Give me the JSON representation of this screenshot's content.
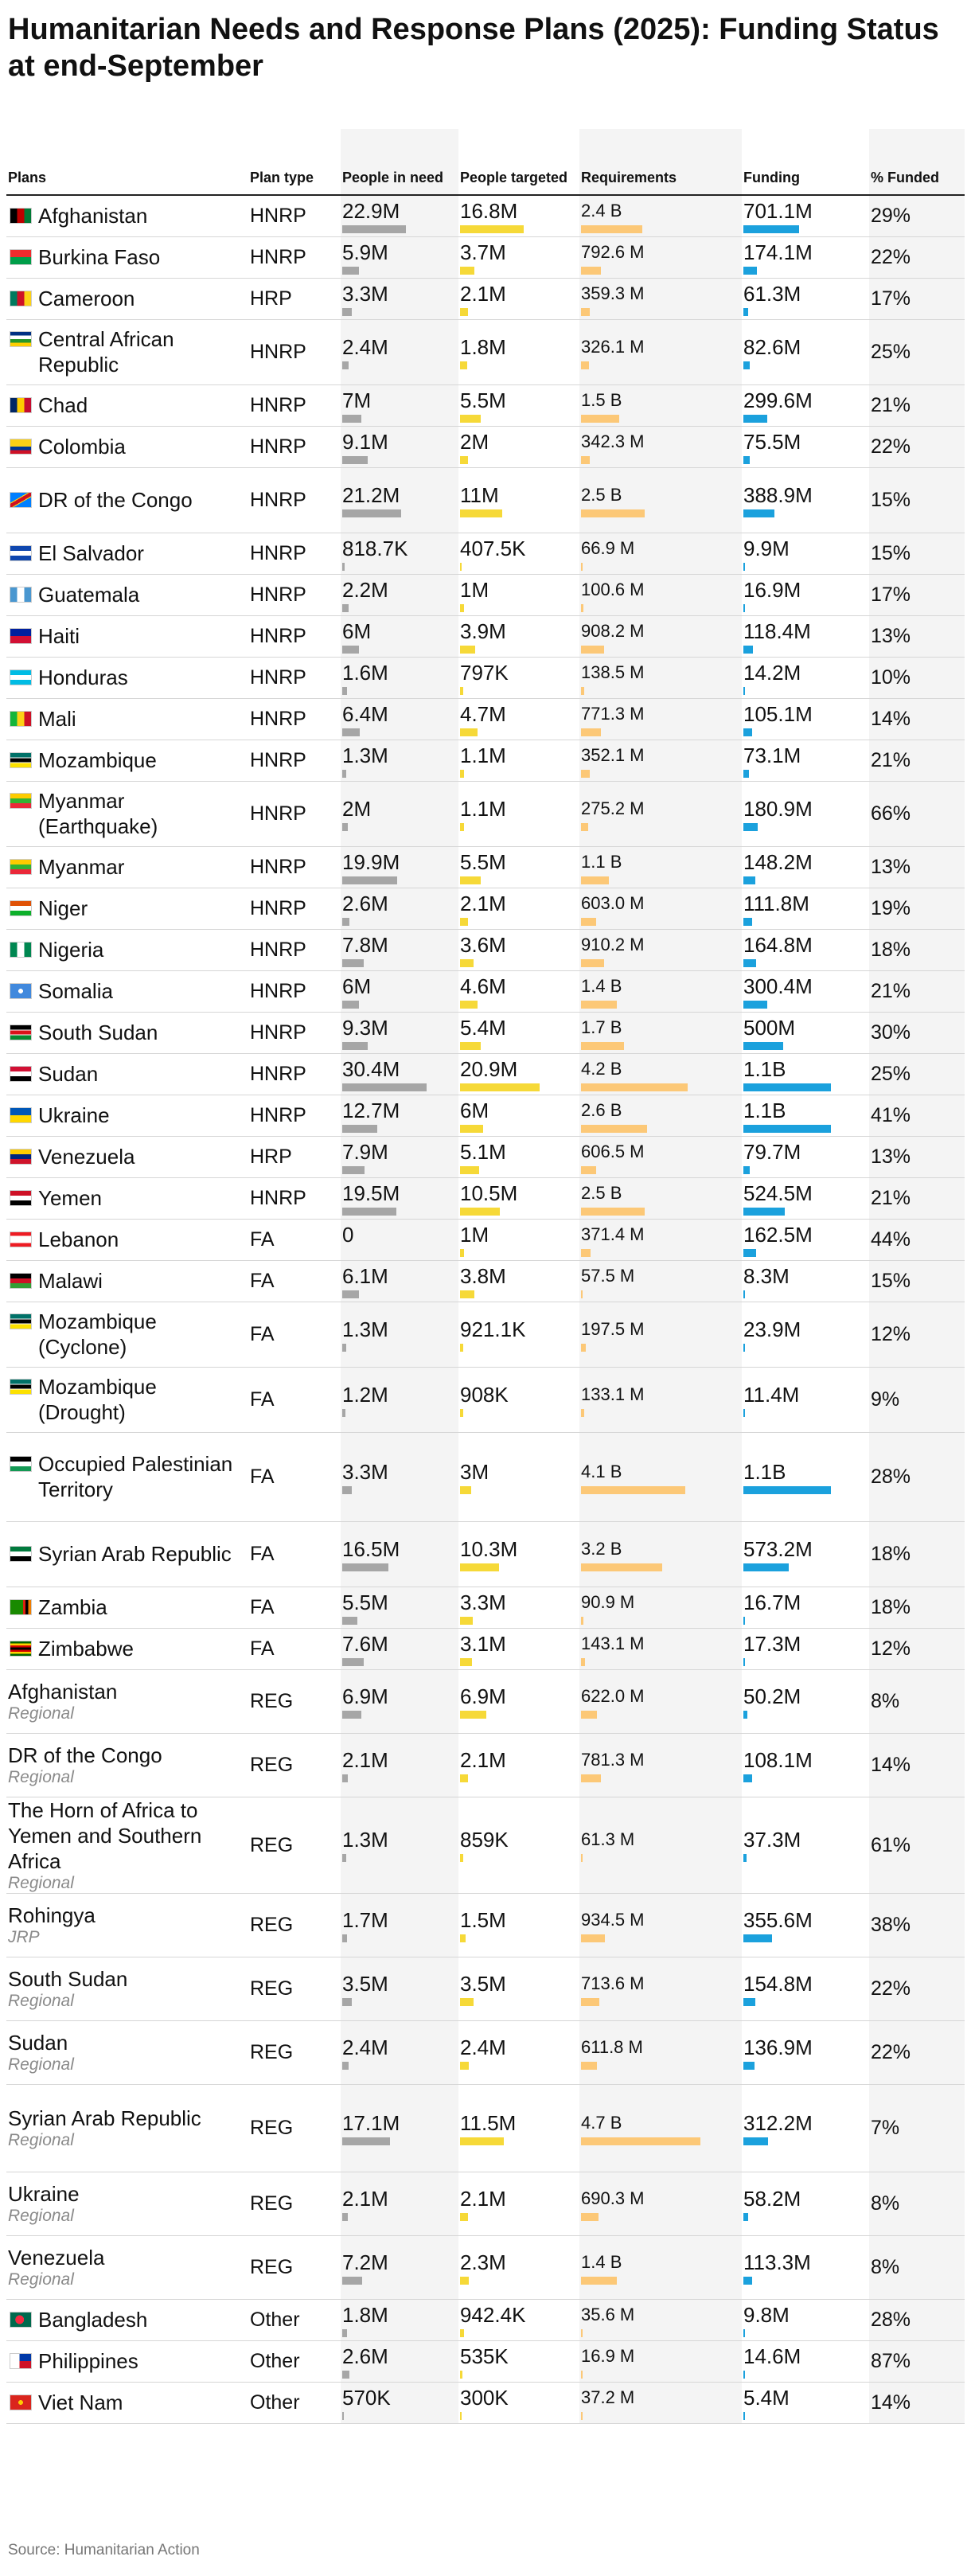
{
  "title": "Humanitarian Needs and Response Plans (2025): Funding Status at end-September",
  "source": "Source: Humanitarian Action",
  "columns": {
    "plan": "Plans",
    "type": "Plan type",
    "need": "People in need",
    "targeted": "People targeted",
    "requirements": "Requirements",
    "funding": "Funding",
    "funded": "% Funded"
  },
  "colors": {
    "need_bar": "#a6a6a6",
    "targeted_bar": "#f6d938",
    "requirements_bar": "#fcc877",
    "funding_bar": "#1ba1dd"
  },
  "chart_data": {
    "type": "table",
    "bar_scales": {
      "need_max_millions": 30.4,
      "targeted_max_millions": 20.9,
      "requirements_max_millions": 4700,
      "funding_max_millions": 1100
    },
    "rows": [
      {
        "plan": "Afghanistan",
        "type": "HNRP",
        "need": "22.9M",
        "targeted": "16.8M",
        "requirements": "2.4 B",
        "funding": "701.1M",
        "funded": "29%",
        "need_v": 22.9,
        "targeted_v": 16.8,
        "requirements_v": 2400,
        "funding_v": 701.1,
        "flag": "afghanistan-flag"
      },
      {
        "plan": "Burkina Faso",
        "type": "HNRP",
        "need": "5.9M",
        "targeted": "3.7M",
        "requirements": "792.6 M",
        "funding": "174.1M",
        "funded": "22%",
        "need_v": 5.9,
        "targeted_v": 3.7,
        "requirements_v": 792.6,
        "funding_v": 174.1,
        "flag": "burkina-faso-flag"
      },
      {
        "plan": "Cameroon",
        "type": "HRP",
        "need": "3.3M",
        "targeted": "2.1M",
        "requirements": "359.3 M",
        "funding": "61.3M",
        "funded": "17%",
        "need_v": 3.3,
        "targeted_v": 2.1,
        "requirements_v": 359.3,
        "funding_v": 61.3,
        "flag": "cameroon-flag"
      },
      {
        "plan": "Central African Republic",
        "type": "HNRP",
        "need": "2.4M",
        "targeted": "1.8M",
        "requirements": "326.1 M",
        "funding": "82.6M",
        "funded": "25%",
        "need_v": 2.4,
        "targeted_v": 1.8,
        "requirements_v": 326.1,
        "funding_v": 82.6,
        "flag": "car-flag"
      },
      {
        "plan": "Chad",
        "type": "HNRP",
        "need": "7M",
        "targeted": "5.5M",
        "requirements": "1.5 B",
        "funding": "299.6M",
        "funded": "21%",
        "need_v": 7,
        "targeted_v": 5.5,
        "requirements_v": 1500,
        "funding_v": 299.6,
        "flag": "chad-flag"
      },
      {
        "plan": "Colombia",
        "type": "HNRP",
        "need": "9.1M",
        "targeted": "2M",
        "requirements": "342.3 M",
        "funding": "75.5M",
        "funded": "22%",
        "need_v": 9.1,
        "targeted_v": 2,
        "requirements_v": 342.3,
        "funding_v": 75.5,
        "flag": "colombia-flag"
      },
      {
        "plan": "DR of the Congo",
        "type": "HNRP",
        "need": "21.2M",
        "targeted": "11M",
        "requirements": "2.5 B",
        "funding": "388.9M",
        "funded": "15%",
        "need_v": 21.2,
        "targeted_v": 11,
        "requirements_v": 2500,
        "funding_v": 388.9,
        "flag": "drc-flag"
      },
      {
        "plan": "El Salvador",
        "type": "HNRP",
        "need": "818.7K",
        "targeted": "407.5K",
        "requirements": "66.9 M",
        "funding": "9.9M",
        "funded": "15%",
        "need_v": 0.8187,
        "targeted_v": 0.4075,
        "requirements_v": 66.9,
        "funding_v": 9.9,
        "flag": "el-salvador-flag"
      },
      {
        "plan": "Guatemala",
        "type": "HNRP",
        "need": "2.2M",
        "targeted": "1M",
        "requirements": "100.6 M",
        "funding": "16.9M",
        "funded": "17%",
        "need_v": 2.2,
        "targeted_v": 1,
        "requirements_v": 100.6,
        "funding_v": 16.9,
        "flag": "guatemala-flag"
      },
      {
        "plan": "Haiti",
        "type": "HNRP",
        "need": "6M",
        "targeted": "3.9M",
        "requirements": "908.2 M",
        "funding": "118.4M",
        "funded": "13%",
        "need_v": 6,
        "targeted_v": 3.9,
        "requirements_v": 908.2,
        "funding_v": 118.4,
        "flag": "haiti-flag"
      },
      {
        "plan": "Honduras",
        "type": "HNRP",
        "need": "1.6M",
        "targeted": "797K",
        "requirements": "138.5 M",
        "funding": "14.2M",
        "funded": "10%",
        "need_v": 1.6,
        "targeted_v": 0.797,
        "requirements_v": 138.5,
        "funding_v": 14.2,
        "flag": "honduras-flag"
      },
      {
        "plan": "Mali",
        "type": "HNRP",
        "need": "6.4M",
        "targeted": "4.7M",
        "requirements": "771.3 M",
        "funding": "105.1M",
        "funded": "14%",
        "need_v": 6.4,
        "targeted_v": 4.7,
        "requirements_v": 771.3,
        "funding_v": 105.1,
        "flag": "mali-flag"
      },
      {
        "plan": "Mozambique",
        "type": "HNRP",
        "need": "1.3M",
        "targeted": "1.1M",
        "requirements": "352.1 M",
        "funding": "73.1M",
        "funded": "21%",
        "need_v": 1.3,
        "targeted_v": 1.1,
        "requirements_v": 352.1,
        "funding_v": 73.1,
        "flag": "mozambique-flag"
      },
      {
        "plan": "Myanmar (Earthquake)",
        "type": "HNRP",
        "need": "2M",
        "targeted": "1.1M",
        "requirements": "275.2 M",
        "funding": "180.9M",
        "funded": "66%",
        "need_v": 2,
        "targeted_v": 1.1,
        "requirements_v": 275.2,
        "funding_v": 180.9,
        "flag": "myanmar-flag"
      },
      {
        "plan": "Myanmar",
        "type": "HNRP",
        "need": "19.9M",
        "targeted": "5.5M",
        "requirements": "1.1 B",
        "funding": "148.2M",
        "funded": "13%",
        "need_v": 19.9,
        "targeted_v": 5.5,
        "requirements_v": 1100,
        "funding_v": 148.2,
        "flag": "myanmar-flag"
      },
      {
        "plan": "Niger",
        "type": "HNRP",
        "need": "2.6M",
        "targeted": "2.1M",
        "requirements": "603.0 M",
        "funding": "111.8M",
        "funded": "19%",
        "need_v": 2.6,
        "targeted_v": 2.1,
        "requirements_v": 603,
        "funding_v": 111.8,
        "flag": "niger-flag"
      },
      {
        "plan": "Nigeria",
        "type": "HNRP",
        "need": "7.8M",
        "targeted": "3.6M",
        "requirements": "910.2 M",
        "funding": "164.8M",
        "funded": "18%",
        "need_v": 7.8,
        "targeted_v": 3.6,
        "requirements_v": 910.2,
        "funding_v": 164.8,
        "flag": "nigeria-flag"
      },
      {
        "plan": "Somalia",
        "type": "HNRP",
        "need": "6M",
        "targeted": "4.6M",
        "requirements": "1.4 B",
        "funding": "300.4M",
        "funded": "21%",
        "need_v": 6,
        "targeted_v": 4.6,
        "requirements_v": 1400,
        "funding_v": 300.4,
        "flag": "somalia-flag"
      },
      {
        "plan": "South Sudan",
        "type": "HNRP",
        "need": "9.3M",
        "targeted": "5.4M",
        "requirements": "1.7 B",
        "funding": "500M",
        "funded": "30%",
        "need_v": 9.3,
        "targeted_v": 5.4,
        "requirements_v": 1700,
        "funding_v": 500,
        "flag": "south-sudan-flag"
      },
      {
        "plan": "Sudan",
        "type": "HNRP",
        "need": "30.4M",
        "targeted": "20.9M",
        "requirements": "4.2 B",
        "funding": "1.1B",
        "funded": "25%",
        "need_v": 30.4,
        "targeted_v": 20.9,
        "requirements_v": 4200,
        "funding_v": 1100,
        "flag": "sudan-flag"
      },
      {
        "plan": "Ukraine",
        "type": "HNRP",
        "need": "12.7M",
        "targeted": "6M",
        "requirements": "2.6 B",
        "funding": "1.1B",
        "funded": "41%",
        "need_v": 12.7,
        "targeted_v": 6,
        "requirements_v": 2600,
        "funding_v": 1100,
        "flag": "ukraine-flag"
      },
      {
        "plan": "Venezuela",
        "type": "HRP",
        "need": "7.9M",
        "targeted": "5.1M",
        "requirements": "606.5 M",
        "funding": "79.7M",
        "funded": "13%",
        "need_v": 7.9,
        "targeted_v": 5.1,
        "requirements_v": 606.5,
        "funding_v": 79.7,
        "flag": "venezuela-flag"
      },
      {
        "plan": "Yemen",
        "type": "HNRP",
        "need": "19.5M",
        "targeted": "10.5M",
        "requirements": "2.5 B",
        "funding": "524.5M",
        "funded": "21%",
        "need_v": 19.5,
        "targeted_v": 10.5,
        "requirements_v": 2500,
        "funding_v": 524.5,
        "flag": "yemen-flag"
      },
      {
        "plan": "Lebanon",
        "type": "FA",
        "need": "0",
        "targeted": "1M",
        "requirements": "371.4 M",
        "funding": "162.5M",
        "funded": "44%",
        "need_v": 0,
        "targeted_v": 1,
        "requirements_v": 371.4,
        "funding_v": 162.5,
        "flag": "lebanon-flag"
      },
      {
        "plan": "Malawi",
        "type": "FA",
        "need": "6.1M",
        "targeted": "3.8M",
        "requirements": "57.5 M",
        "funding": "8.3M",
        "funded": "15%",
        "need_v": 6.1,
        "targeted_v": 3.8,
        "requirements_v": 57.5,
        "funding_v": 8.3,
        "flag": "malawi-flag"
      },
      {
        "plan": "Mozambique (Cyclone)",
        "type": "FA",
        "need": "1.3M",
        "targeted": "921.1K",
        "requirements": "197.5 M",
        "funding": "23.9M",
        "funded": "12%",
        "need_v": 1.3,
        "targeted_v": 0.9211,
        "requirements_v": 197.5,
        "funding_v": 23.9,
        "flag": "mozambique-flag"
      },
      {
        "plan": "Mozambique (Drought)",
        "type": "FA",
        "need": "1.2M",
        "targeted": "908K",
        "requirements": "133.1 M",
        "funding": "11.4M",
        "funded": "9%",
        "need_v": 1.2,
        "targeted_v": 0.908,
        "requirements_v": 133.1,
        "funding_v": 11.4,
        "flag": "mozambique-flag"
      },
      {
        "plan": "Occupied Palestinian Territory",
        "type": "FA",
        "need": "3.3M",
        "targeted": "3M",
        "requirements": "4.1 B",
        "funding": "1.1B",
        "funded": "28%",
        "need_v": 3.3,
        "targeted_v": 3,
        "requirements_v": 4100,
        "funding_v": 1100,
        "flag": "palestine-flag"
      },
      {
        "plan": "Syrian Arab Republic",
        "type": "FA",
        "need": "16.5M",
        "targeted": "10.3M",
        "requirements": "3.2 B",
        "funding": "573.2M",
        "funded": "18%",
        "need_v": 16.5,
        "targeted_v": 10.3,
        "requirements_v": 3200,
        "funding_v": 573.2,
        "flag": "syria-flag"
      },
      {
        "plan": "Zambia",
        "type": "FA",
        "need": "5.5M",
        "targeted": "3.3M",
        "requirements": "90.9 M",
        "funding": "16.7M",
        "funded": "18%",
        "need_v": 5.5,
        "targeted_v": 3.3,
        "requirements_v": 90.9,
        "funding_v": 16.7,
        "flag": "zambia-flag"
      },
      {
        "plan": "Zimbabwe",
        "type": "FA",
        "need": "7.6M",
        "targeted": "3.1M",
        "requirements": "143.1 M",
        "funding": "17.3M",
        "funded": "12%",
        "need_v": 7.6,
        "targeted_v": 3.1,
        "requirements_v": 143.1,
        "funding_v": 17.3,
        "flag": "zimbabwe-flag"
      },
      {
        "plan": "Afghanistan",
        "sub": "Regional",
        "type": "REG",
        "need": "6.9M",
        "targeted": "6.9M",
        "requirements": "622.0 M",
        "funding": "50.2M",
        "funded": "8%",
        "need_v": 6.9,
        "targeted_v": 6.9,
        "requirements_v": 622,
        "funding_v": 50.2,
        "flag": ""
      },
      {
        "plan": "DR of the Congo",
        "sub": "Regional",
        "type": "REG",
        "need": "2.1M",
        "targeted": "2.1M",
        "requirements": "781.3 M",
        "funding": "108.1M",
        "funded": "14%",
        "need_v": 2.1,
        "targeted_v": 2.1,
        "requirements_v": 781.3,
        "funding_v": 108.1,
        "flag": ""
      },
      {
        "plan": "The Horn of Africa to Yemen and Southern Africa",
        "sub": "Regional",
        "type": "REG",
        "need": "1.3M",
        "targeted": "859K",
        "requirements": "61.3 M",
        "funding": "37.3M",
        "funded": "61%",
        "need_v": 1.3,
        "targeted_v": 0.859,
        "requirements_v": 61.3,
        "funding_v": 37.3,
        "flag": ""
      },
      {
        "plan": "Rohingya",
        "sub": "JRP",
        "type": "REG",
        "need": "1.7M",
        "targeted": "1.5M",
        "requirements": "934.5 M",
        "funding": "355.6M",
        "funded": "38%",
        "need_v": 1.7,
        "targeted_v": 1.5,
        "requirements_v": 934.5,
        "funding_v": 355.6,
        "flag": ""
      },
      {
        "plan": "South Sudan",
        "sub": "Regional",
        "type": "REG",
        "need": "3.5M",
        "targeted": "3.5M",
        "requirements": "713.6 M",
        "funding": "154.8M",
        "funded": "22%",
        "need_v": 3.5,
        "targeted_v": 3.5,
        "requirements_v": 713.6,
        "funding_v": 154.8,
        "flag": ""
      },
      {
        "plan": "Sudan",
        "sub": "Regional",
        "type": "REG",
        "need": "2.4M",
        "targeted": "2.4M",
        "requirements": "611.8 M",
        "funding": "136.9M",
        "funded": "22%",
        "need_v": 2.4,
        "targeted_v": 2.4,
        "requirements_v": 611.8,
        "funding_v": 136.9,
        "flag": ""
      },
      {
        "plan": "Syrian Arab Republic",
        "sub": "Regional",
        "type": "REG",
        "need": "17.1M",
        "targeted": "11.5M",
        "requirements": "4.7 B",
        "funding": "312.2M",
        "funded": "7%",
        "need_v": 17.1,
        "targeted_v": 11.5,
        "requirements_v": 4700,
        "funding_v": 312.2,
        "flag": ""
      },
      {
        "plan": "Ukraine",
        "sub": "Regional",
        "type": "REG",
        "need": "2.1M",
        "targeted": "2.1M",
        "requirements": "690.3 M",
        "funding": "58.2M",
        "funded": "8%",
        "need_v": 2.1,
        "targeted_v": 2.1,
        "requirements_v": 690.3,
        "funding_v": 58.2,
        "flag": ""
      },
      {
        "plan": "Venezuela",
        "sub": "Regional",
        "type": "REG",
        "need": "7.2M",
        "targeted": "2.3M",
        "requirements": "1.4 B",
        "funding": "113.3M",
        "funded": "8%",
        "need_v": 7.2,
        "targeted_v": 2.3,
        "requirements_v": 1400,
        "funding_v": 113.3,
        "flag": ""
      },
      {
        "plan": "Bangladesh",
        "type": "Other",
        "need": "1.8M",
        "targeted": "942.4K",
        "requirements": "35.6 M",
        "funding": "9.8M",
        "funded": "28%",
        "need_v": 1.8,
        "targeted_v": 0.9424,
        "requirements_v": 35.6,
        "funding_v": 9.8,
        "flag": "bangladesh-flag"
      },
      {
        "plan": "Philippines",
        "type": "Other",
        "need": "2.6M",
        "targeted": "535K",
        "requirements": "16.9 M",
        "funding": "14.6M",
        "funded": "87%",
        "need_v": 2.6,
        "targeted_v": 0.535,
        "requirements_v": 16.9,
        "funding_v": 14.6,
        "flag": "philippines-flag"
      },
      {
        "plan": "Viet Nam",
        "type": "Other",
        "need": "570K",
        "targeted": "300K",
        "requirements": "37.2 M",
        "funding": "5.4M",
        "funded": "14%",
        "need_v": 0.57,
        "targeted_v": 0.3,
        "requirements_v": 37.2,
        "funding_v": 5.4,
        "flag": "viet-nam-flag"
      }
    ]
  }
}
